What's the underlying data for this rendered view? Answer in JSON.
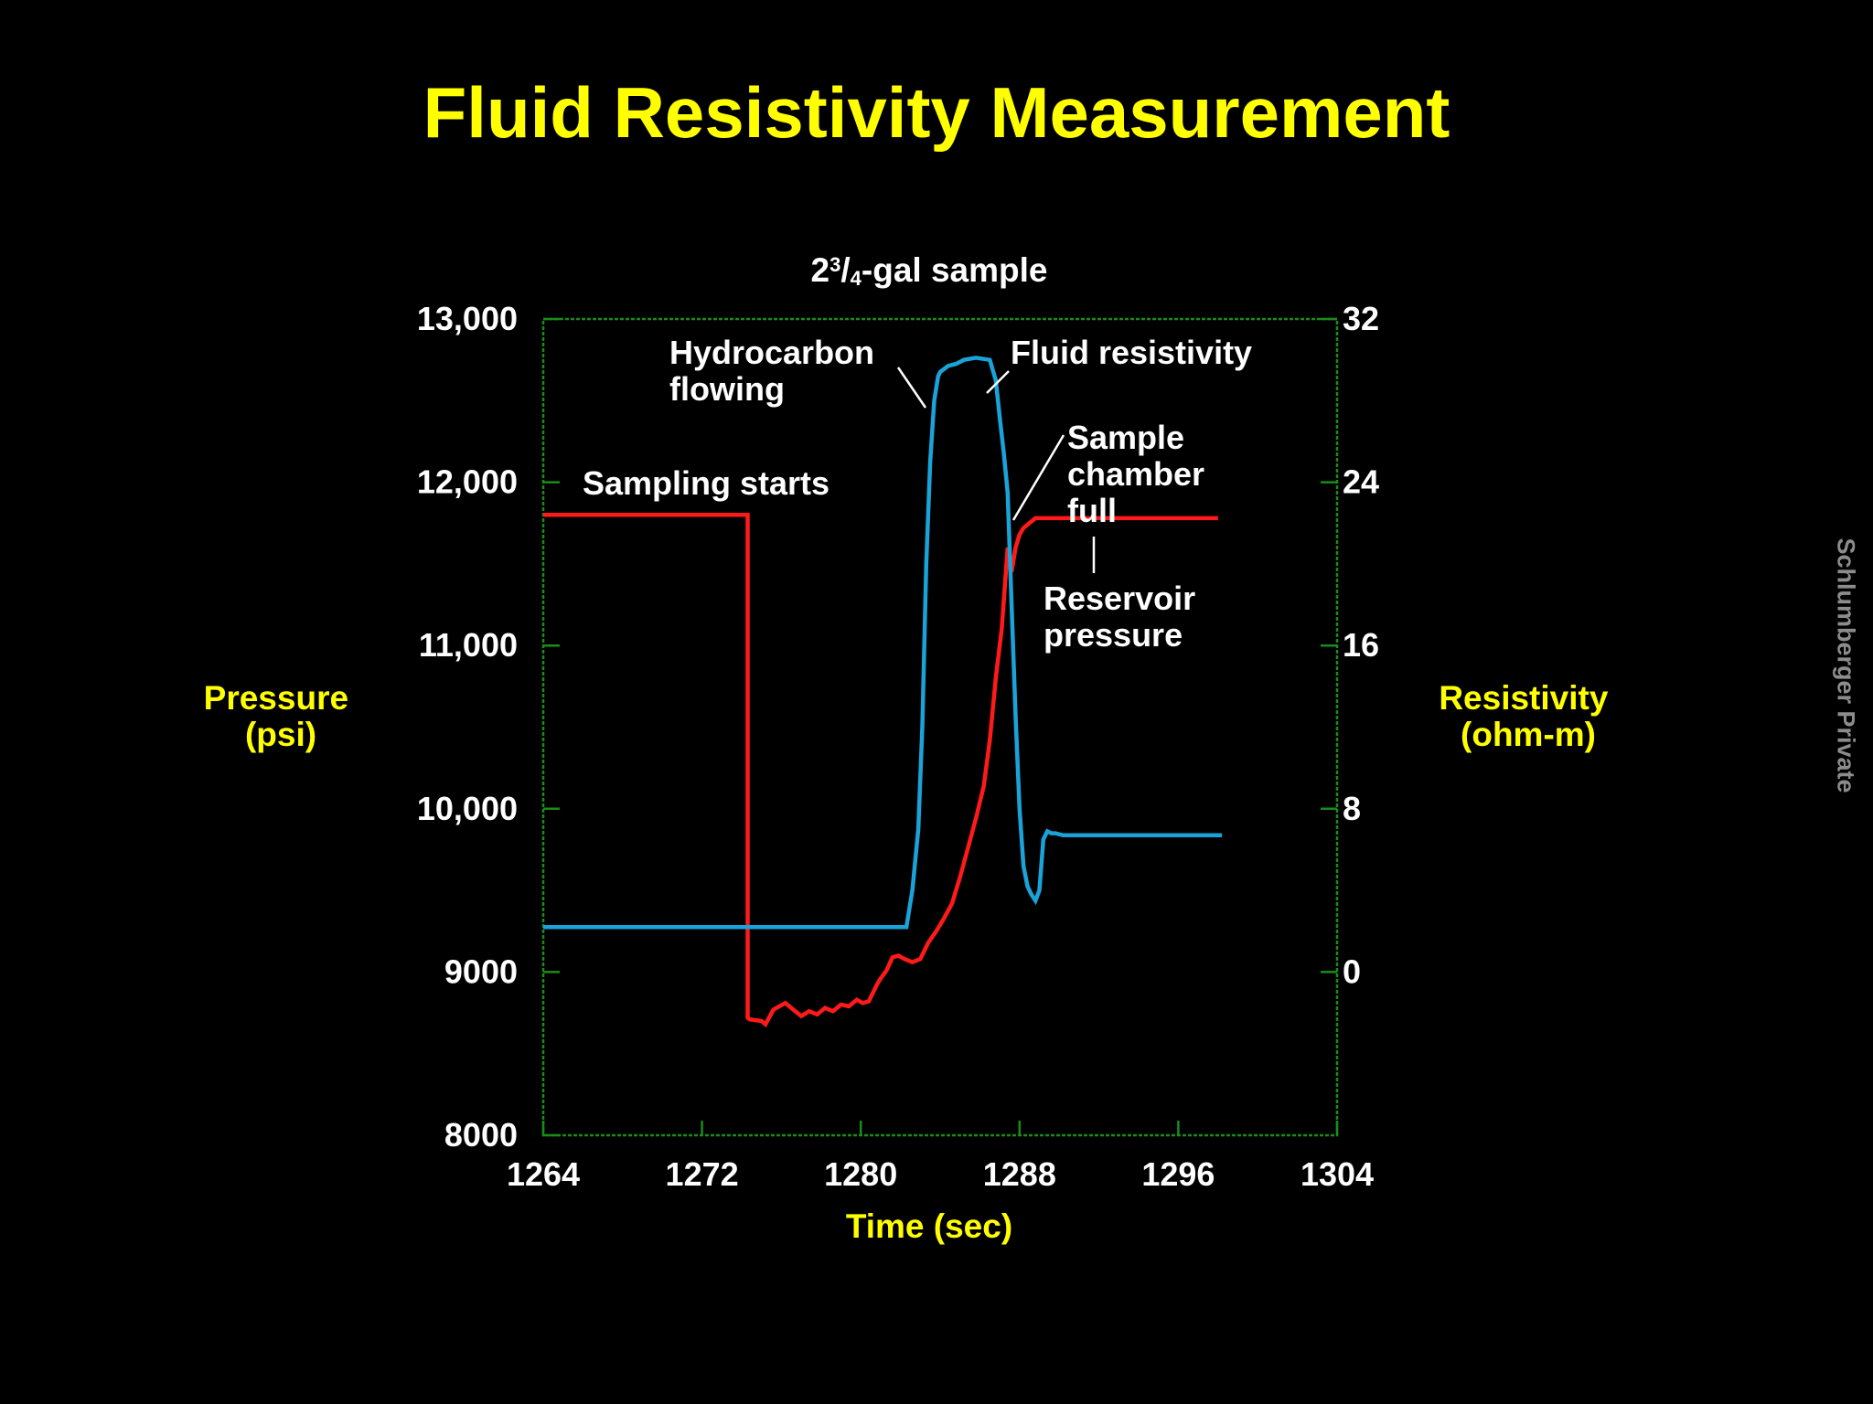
{
  "title": "Fluid Resistivity Measurement",
  "watermark": "Schlumberger Private",
  "colors": {
    "background": "#000000",
    "title": "#ffff00",
    "axis_label": "#ffff00",
    "frame": "#1a8c1a",
    "pressure_line": "#ff1a1a",
    "resistivity_line": "#1aa3d9",
    "text": "#ffffff"
  },
  "chart_data": {
    "type": "line",
    "title": "2³/₄-gal sample",
    "title_parts": {
      "whole": "2",
      "num": "3",
      "slash": "/",
      "den": "4",
      "rest": "-gal sample"
    },
    "xlabel": "Time (sec)",
    "ylabel_left": [
      "Pressure",
      "(psi)"
    ],
    "ylabel_right": [
      "Resistivity",
      "(ohm-m)"
    ],
    "xlim": [
      1264,
      1304
    ],
    "ylim_left": [
      8000,
      13000
    ],
    "ylim_right": [
      -8,
      32
    ],
    "x_ticks": [
      1264,
      1272,
      1280,
      1288,
      1296,
      1304
    ],
    "x_tick_labels": [
      "1264",
      "1272",
      "1280",
      "1288",
      "1296",
      "1304"
    ],
    "y_left_ticks": [
      8000,
      9000,
      10000,
      11000,
      12000,
      13000
    ],
    "y_left_tick_labels": [
      "8000",
      "9000",
      "10,000",
      "11,000",
      "12,000",
      "13,000"
    ],
    "y_right_ticks": [
      0,
      8,
      16,
      24,
      32
    ],
    "y_right_tick_labels": [
      "0",
      "8",
      "16",
      "24",
      "32"
    ],
    "series": [
      {
        "name": "Pressure",
        "axis": "left",
        "x": [
          1264,
          1274.3,
          1274.3,
          1274.4,
          1275.0,
          1275.2,
          1275.6,
          1276.2,
          1276.6,
          1277.0,
          1277.4,
          1277.8,
          1278.2,
          1278.6,
          1279.0,
          1279.4,
          1279.8,
          1280.1,
          1280.4,
          1280.8,
          1281.0,
          1281.3,
          1281.6,
          1281.9,
          1282.2,
          1282.6,
          1283.0,
          1283.4,
          1283.8,
          1284.2,
          1284.6,
          1285.0,
          1285.4,
          1285.8,
          1286.2,
          1286.5,
          1286.8,
          1287.1,
          1287.4,
          1287.6,
          1287.8,
          1288.0,
          1288.2,
          1288.4,
          1288.6,
          1288.8,
          1298.0
        ],
        "values": [
          11800,
          11800,
          8720,
          8710,
          8700,
          8680,
          8770,
          8810,
          8770,
          8730,
          8760,
          8740,
          8780,
          8760,
          8800,
          8790,
          8830,
          8810,
          8820,
          8920,
          8960,
          9010,
          9090,
          9100,
          9080,
          9060,
          9080,
          9180,
          9250,
          9330,
          9420,
          9580,
          9760,
          9940,
          10140,
          10420,
          10800,
          11100,
          11600,
          11450,
          11600,
          11680,
          11720,
          11740,
          11760,
          11780,
          11780
        ]
      },
      {
        "name": "Resistivity",
        "axis": "right",
        "x": [
          1264,
          1282.3,
          1282.6,
          1282.9,
          1283.1,
          1283.3,
          1283.5,
          1283.7,
          1283.9,
          1284.0,
          1284.4,
          1284.8,
          1285.2,
          1285.8,
          1286.5,
          1286.8,
          1287.0,
          1287.2,
          1287.4,
          1287.6,
          1287.8,
          1288.0,
          1288.2,
          1288.4,
          1288.6,
          1288.8,
          1289.0,
          1289.2,
          1289.4,
          1289.6,
          1289.8,
          1290.2,
          1298.2
        ],
        "values": [
          2.2,
          2.2,
          4.0,
          7.0,
          12.0,
          20.0,
          25.0,
          28.0,
          29.2,
          29.4,
          29.7,
          29.8,
          30.0,
          30.1,
          30.0,
          29.0,
          27.2,
          25.5,
          23.5,
          18.0,
          12.5,
          8.0,
          5.2,
          4.2,
          3.8,
          3.5,
          4.0,
          6.5,
          6.9,
          6.8,
          6.8,
          6.7,
          6.7
        ]
      }
    ],
    "annotations": [
      {
        "id": "sampling",
        "lines": [
          "Sampling starts"
        ]
      },
      {
        "id": "hydro",
        "lines": [
          "Hydrocarbon",
          "flowing"
        ]
      },
      {
        "id": "fluidres",
        "lines": [
          "Fluid resistivity"
        ]
      },
      {
        "id": "chamber",
        "lines": [
          "Sample",
          "chamber",
          "full"
        ]
      },
      {
        "id": "reservoir",
        "lines": [
          "Reservoir",
          "pressure"
        ]
      }
    ]
  }
}
